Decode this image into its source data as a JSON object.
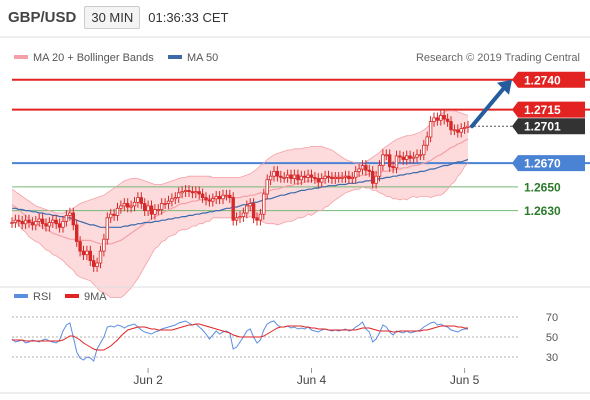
{
  "header": {
    "symbol": "GBP/USD",
    "timeframe": "30 MIN",
    "time": "01:36:33 CET"
  },
  "legend": {
    "ma20_bb": "MA 20 + Bollinger Bands",
    "ma50": "MA 50",
    "rsi": "RSI",
    "ma9": "9MA"
  },
  "copyright": "Research © 2019 Trading Central",
  "colors": {
    "candle": "#d62828",
    "bb_fill": "#fdd7d9",
    "bb_line": "#f4a0a6",
    "ma20": "#f4a0a6",
    "ma50": "#3d6aa8",
    "resistance": "#e32222",
    "pivot": "#4a82d4",
    "support": "#74b874",
    "rsi": "#5b8de0",
    "rsi_ma": "#e32222",
    "arrow": "#245c9e",
    "last_price_bg": "#333333"
  },
  "chart_data": {
    "type": "candlestick",
    "symbol": "GBP/USD",
    "timeframe": "30 MIN",
    "y_range": [
      1.257,
      1.2755
    ],
    "x_tick_labels": [
      {
        "label": "Jun 2",
        "index": 40
      },
      {
        "label": "Jun 4",
        "index": 88
      },
      {
        "label": "Jun 5",
        "index": 133
      }
    ],
    "levels": [
      {
        "value": 1.274,
        "label": "1.2740",
        "kind": "resistance"
      },
      {
        "value": 1.2715,
        "label": "1.2715",
        "kind": "resistance"
      },
      {
        "value": 1.2701,
        "label": "1.2701",
        "kind": "last"
      },
      {
        "value": 1.267,
        "label": "1.2670",
        "kind": "pivot"
      },
      {
        "value": 1.265,
        "label": "1.2650",
        "kind": "support"
      },
      {
        "value": 1.263,
        "label": "1.2630",
        "kind": "support"
      }
    ],
    "arrow": {
      "from_value": 1.2701,
      "to_value": 1.274
    },
    "price_close": [
      1.262,
      1.2622,
      1.2621,
      1.2619,
      1.2622,
      1.262,
      1.2618,
      1.2621,
      1.2623,
      1.2619,
      1.2617,
      1.262,
      1.2622,
      1.2619,
      1.2616,
      1.2621,
      1.2626,
      1.2628,
      1.2618,
      1.2604,
      1.2596,
      1.2593,
      1.2596,
      1.2588,
      1.2583,
      1.2586,
      1.2596,
      1.2606,
      1.2624,
      1.2627,
      1.2626,
      1.2632,
      1.2634,
      1.2636,
      1.2633,
      1.2634,
      1.2637,
      1.2641,
      1.2636,
      1.263,
      1.2634,
      1.2627,
      1.2631,
      1.2631,
      1.2636,
      1.2636,
      1.2638,
      1.264,
      1.2641,
      1.2645,
      1.2646,
      1.2647,
      1.2646,
      1.2645,
      1.2646,
      1.2644,
      1.2641,
      1.2639,
      1.2638,
      1.264,
      1.2642,
      1.264,
      1.2643,
      1.2643,
      1.2641,
      1.2622,
      1.2624,
      1.2625,
      1.2628,
      1.2634,
      1.2636,
      1.2624,
      1.2622,
      1.2627,
      1.2644,
      1.2656,
      1.2659,
      1.2663,
      1.2659,
      1.2658,
      1.2658,
      1.266,
      1.2657,
      1.266,
      1.2656,
      1.2659,
      1.2658,
      1.266,
      1.2658,
      1.2657,
      1.2654,
      1.2657,
      1.2659,
      1.2658,
      1.2657,
      1.2658,
      1.2658,
      1.2658,
      1.2659,
      1.2657,
      1.2658,
      1.2663,
      1.2665,
      1.2668,
      1.2664,
      1.2663,
      1.2653,
      1.2659,
      1.2668,
      1.2677,
      1.2677,
      1.2667,
      1.2666,
      1.2676,
      1.2675,
      1.2673,
      1.2676,
      1.2674,
      1.2675,
      1.2677,
      1.2677,
      1.2685,
      1.2692,
      1.2705,
      1.2708,
      1.2706,
      1.271,
      1.2707,
      1.2705,
      1.2698,
      1.2698,
      1.2696,
      1.2699,
      1.27,
      1.2701
    ],
    "ma20": [
      1.2635,
      1.2633,
      1.2631,
      1.2628,
      1.2626,
      1.2623,
      1.2621,
      1.2619,
      1.2618,
      1.2616,
      1.2614,
      1.2613,
      1.2611,
      1.261,
      1.2609,
      1.2608,
      1.2607,
      1.2606,
      1.2606,
      1.2605,
      1.2605,
      1.2605,
      1.2605,
      1.2605,
      1.2604,
      1.2603,
      1.2602,
      1.2602,
      1.2602,
      1.2602,
      1.2603,
      1.2604,
      1.2605,
      1.2607,
      1.2609,
      1.2611,
      1.2613,
      1.2615,
      1.2617,
      1.2619,
      1.2621,
      1.2623,
      1.2625,
      1.2626,
      1.2628,
      1.2629,
      1.2631,
      1.2632,
      1.2633,
      1.2635,
      1.2636,
      1.2636,
      1.2637,
      1.2638,
      1.2638,
      1.2639,
      1.2639,
      1.264,
      1.264,
      1.2641,
      1.2641,
      1.2641,
      1.2641,
      1.2641,
      1.2641,
      1.2641,
      1.2641,
      1.2641,
      1.2642,
      1.2642,
      1.2643,
      1.2643,
      1.2644,
      1.2645,
      1.2645,
      1.2646,
      1.2647,
      1.2648,
      1.2648,
      1.2649,
      1.265,
      1.2651,
      1.2651,
      1.2652,
      1.2653,
      1.2653,
      1.2654,
      1.2655,
      1.2655,
      1.2656,
      1.2657,
      1.2657,
      1.2658,
      1.2658,
      1.2659,
      1.2659,
      1.2659,
      1.2659,
      1.2659,
      1.2659,
      1.2659,
      1.2659,
      1.2659,
      1.266,
      1.266,
      1.2661,
      1.2661,
      1.2662,
      1.2662,
      1.2663,
      1.2663,
      1.2664,
      1.2664,
      1.2665,
      1.2665,
      1.2666,
      1.2666,
      1.2667,
      1.2668,
      1.2668,
      1.2669,
      1.267,
      1.2671,
      1.2672,
      1.2674,
      1.2676,
      1.2677,
      1.2679,
      1.2681,
      1.2683,
      1.2684,
      1.2686,
      1.2687,
      1.2689,
      1.269
    ],
    "bb_upper": [
      1.2648,
      1.2646,
      1.2644,
      1.2642,
      1.264,
      1.2638,
      1.2636,
      1.2634,
      1.2633,
      1.2632,
      1.2631,
      1.263,
      1.2629,
      1.2628,
      1.2628,
      1.2628,
      1.2629,
      1.263,
      1.2632,
      1.2634,
      1.2636,
      1.2637,
      1.2638,
      1.2639,
      1.264,
      1.2641,
      1.2642,
      1.2643,
      1.2645,
      1.2647,
      1.2649,
      1.2651,
      1.2653,
      1.2655,
      1.2656,
      1.2657,
      1.2657,
      1.2657,
      1.2656,
      1.2655,
      1.2654,
      1.2653,
      1.2652,
      1.2652,
      1.2652,
      1.2653,
      1.2654,
      1.2655,
      1.2656,
      1.2657,
      1.2658,
      1.2658,
      1.2659,
      1.2659,
      1.2659,
      1.2659,
      1.2659,
      1.2659,
      1.2659,
      1.2658,
      1.2658,
      1.2658,
      1.2658,
      1.2658,
      1.2658,
      1.2658,
      1.2658,
      1.2658,
      1.2659,
      1.266,
      1.2661,
      1.2663,
      1.2665,
      1.2668,
      1.267,
      1.2673,
      1.2675,
      1.2677,
      1.2678,
      1.2679,
      1.268,
      1.2681,
      1.2681,
      1.2682,
      1.2682,
      1.2682,
      1.2683,
      1.2683,
      1.2684,
      1.2684,
      1.2684,
      1.2684,
      1.2683,
      1.2682,
      1.2681,
      1.2679,
      1.2677,
      1.2675,
      1.2673,
      1.2672,
      1.2671,
      1.267,
      1.267,
      1.267,
      1.2671,
      1.2673,
      1.2675,
      1.2677,
      1.2679,
      1.2682,
      1.2684,
      1.2686,
      1.2688,
      1.269,
      1.2691,
      1.2692,
      1.2693,
      1.2693,
      1.2694,
      1.2695,
      1.2696,
      1.2698,
      1.27,
      1.2703,
      1.2706,
      1.2709,
      1.2711,
      1.2713,
      1.2714,
      1.2714,
      1.2714,
      1.2713,
      1.2712,
      1.2711,
      1.271
    ],
    "bb_lower": [
      1.2622,
      1.262,
      1.2618,
      1.2614,
      1.2612,
      1.2608,
      1.2606,
      1.2604,
      1.2603,
      1.26,
      1.2597,
      1.2596,
      1.2593,
      1.2592,
      1.259,
      1.2588,
      1.2585,
      1.2582,
      1.258,
      1.2576,
      1.2574,
      1.2573,
      1.2572,
      1.2571,
      1.2568,
      1.2565,
      1.2562,
      1.2561,
      1.2559,
      1.2557,
      1.2557,
      1.2557,
      1.2557,
      1.2559,
      1.2562,
      1.2565,
      1.2569,
      1.2573,
      1.2578,
      1.2583,
      1.2588,
      1.2593,
      1.2598,
      1.26,
      1.2604,
      1.2605,
      1.2608,
      1.2609,
      1.261,
      1.2613,
      1.2614,
      1.2614,
      1.2615,
      1.2617,
      1.2617,
      1.2619,
      1.2619,
      1.2621,
      1.2621,
      1.2624,
      1.2624,
      1.2624,
      1.2624,
      1.2624,
      1.2624,
      1.2624,
      1.2624,
      1.2624,
      1.2625,
      1.2624,
      1.2625,
      1.2623,
      1.2623,
      1.2622,
      1.262,
      1.2619,
      1.2619,
      1.2619,
      1.2618,
      1.2619,
      1.262,
      1.2621,
      1.2621,
      1.2622,
      1.2624,
      1.2624,
      1.2625,
      1.2627,
      1.2626,
      1.2628,
      1.263,
      1.263,
      1.2633,
      1.2634,
      1.2637,
      1.2639,
      1.2641,
      1.2643,
      1.2645,
      1.2646,
      1.2647,
      1.2648,
      1.2648,
      1.265,
      1.2649,
      1.2649,
      1.2647,
      1.2647,
      1.2645,
      1.2644,
      1.2642,
      1.2642,
      1.264,
      1.264,
      1.2639,
      1.264,
      1.2639,
      1.2641,
      1.2642,
      1.2641,
      1.2642,
      1.2642,
      1.2642,
      1.2641,
      1.2642,
      1.2643,
      1.2643,
      1.2645,
      1.2648,
      1.2652,
      1.2654,
      1.2659,
      1.2662,
      1.2667,
      1.267
    ],
    "ma50": [
      1.2632,
      1.2632,
      1.2631,
      1.2631,
      1.263,
      1.263,
      1.2629,
      1.2629,
      1.2628,
      1.2628,
      1.2627,
      1.2627,
      1.2626,
      1.2626,
      1.2625,
      1.2625,
      1.2624,
      1.2624,
      1.2623,
      1.2622,
      1.2621,
      1.262,
      1.2619,
      1.2618,
      1.2618,
      1.2617,
      1.2616,
      1.2616,
      1.2616,
      1.2616,
      1.2616,
      1.2616,
      1.2616,
      1.2617,
      1.2617,
      1.2618,
      1.2618,
      1.2619,
      1.2619,
      1.262,
      1.262,
      1.262,
      1.2621,
      1.2621,
      1.2622,
      1.2622,
      1.2623,
      1.2623,
      1.2624,
      1.2624,
      1.2625,
      1.2625,
      1.2626,
      1.2626,
      1.2627,
      1.2627,
      1.2628,
      1.2628,
      1.2629,
      1.2629,
      1.263,
      1.263,
      1.2631,
      1.2632,
      1.2632,
      1.2633,
      1.2633,
      1.2634,
      1.2635,
      1.2635,
      1.2636,
      1.2637,
      1.2637,
      1.2638,
      1.2639,
      1.264,
      1.264,
      1.2641,
      1.2642,
      1.2643,
      1.2643,
      1.2644,
      1.2645,
      1.2645,
      1.2646,
      1.2647,
      1.2647,
      1.2648,
      1.2648,
      1.2649,
      1.2649,
      1.265,
      1.265,
      1.2651,
      1.2651,
      1.2651,
      1.2652,
      1.2652,
      1.2652,
      1.2653,
      1.2653,
      1.2653,
      1.2654,
      1.2654,
      1.2655,
      1.2655,
      1.2656,
      1.2656,
      1.2657,
      1.2657,
      1.2658,
      1.2658,
      1.2659,
      1.2659,
      1.266,
      1.266,
      1.2661,
      1.2661,
      1.2662,
      1.2662,
      1.2663,
      1.2663,
      1.2664,
      1.2665,
      1.2665,
      1.2666,
      1.2667,
      1.2668,
      1.2668,
      1.2669,
      1.267,
      1.2671,
      1.2671,
      1.2672,
      1.2673
    ],
    "rsi": {
      "y_range": [
        20,
        80
      ],
      "ticks": [
        70,
        50,
        30
      ],
      "rsi": [
        48,
        45,
        46,
        47,
        44,
        45,
        47,
        46,
        45,
        47,
        48,
        46,
        45,
        44,
        47,
        56,
        62,
        64,
        50,
        35,
        29,
        27,
        30,
        29,
        26,
        38,
        44,
        50,
        60,
        61,
        60,
        62,
        61,
        59,
        61,
        62,
        63,
        60,
        57,
        55,
        54,
        53,
        55,
        56,
        58,
        59,
        60,
        61,
        62,
        64,
        65,
        66,
        64,
        62,
        63,
        60,
        57,
        53,
        48,
        52,
        56,
        53,
        55,
        56,
        54,
        38,
        40,
        45,
        50,
        56,
        58,
        50,
        44,
        47,
        57,
        63,
        65,
        66,
        62,
        60,
        60,
        61,
        59,
        60,
        58,
        59,
        58,
        60,
        57,
        56,
        55,
        57,
        58,
        57,
        56,
        57,
        56,
        57,
        58,
        56,
        57,
        60,
        62,
        65,
        58,
        55,
        45,
        48,
        54,
        62,
        60,
        55,
        52,
        56,
        55,
        54,
        56,
        54,
        55,
        56,
        57,
        60,
        62,
        64,
        65,
        62,
        63,
        61,
        60,
        57,
        56,
        55,
        57,
        58,
        58
      ],
      "ma9": [
        47,
        47,
        47,
        47,
        46,
        46,
        46,
        46,
        46,
        46,
        46,
        46,
        46,
        46,
        46,
        47,
        49,
        51,
        51,
        49,
        47,
        44,
        42,
        40,
        38,
        37,
        37,
        37,
        39,
        41,
        44,
        47,
        51,
        54,
        57,
        58,
        59,
        60,
        60,
        60,
        59,
        58,
        58,
        57,
        57,
        57,
        57,
        57,
        58,
        59,
        60,
        61,
        62,
        62,
        63,
        63,
        62,
        61,
        60,
        59,
        58,
        57,
        56,
        55,
        54,
        52,
        51,
        50,
        50,
        50,
        50,
        50,
        50,
        50,
        51,
        53,
        55,
        57,
        59,
        60,
        60,
        61,
        61,
        61,
        61,
        61,
        60,
        60,
        59,
        59,
        58,
        58,
        58,
        57,
        57,
        57,
        57,
        57,
        57,
        57,
        57,
        57,
        58,
        59,
        59,
        59,
        58,
        57,
        56,
        56,
        56,
        56,
        55,
        55,
        56,
        56,
        56,
        56,
        56,
        56,
        56,
        57,
        57,
        58,
        59,
        60,
        61,
        61,
        61,
        61,
        61,
        60,
        60,
        59,
        59
      ]
    }
  }
}
